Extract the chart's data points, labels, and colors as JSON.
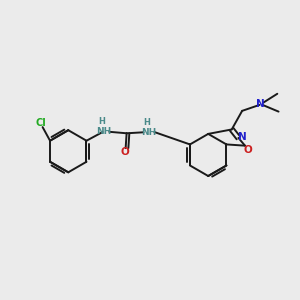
{
  "bg": "#ebebeb",
  "bond_color": "#1a1a1a",
  "N_color": "#2020cc",
  "NH_color": "#4a8a8a",
  "O_color": "#cc2020",
  "Cl_color": "#22aa22",
  "lw": 1.4,
  "figsize": [
    3.0,
    3.0
  ],
  "dpi": 100,
  "xlim": [
    -1.0,
    11.0
  ],
  "ylim": [
    -1.0,
    8.5
  ]
}
